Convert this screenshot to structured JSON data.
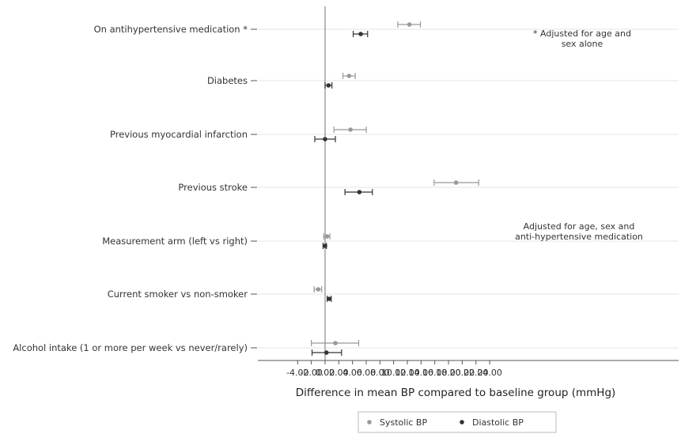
{
  "chart_data": {
    "type": "scatter",
    "xlabel": "Difference in mean BP compared to baseline group (mmHg)",
    "xlim": [
      -4.8,
      24.5
    ],
    "xticks": [
      "-4.00",
      "-2.00",
      "0.00",
      "2.00",
      "4.00",
      "6.00",
      "8.00",
      "10.00",
      "12.00",
      "14.00",
      "16.00",
      "18.00",
      "20.00",
      "22.00",
      "24.00"
    ],
    "xtick_values": [
      -4,
      -2,
      0,
      2,
      4,
      6,
      8,
      10,
      12,
      14,
      16,
      18,
      20,
      22,
      24
    ],
    "reference_line": 0,
    "grid": "horizontal",
    "categories": [
      "On antihypertensive medication *",
      "Diabetes",
      "Previous myocardial infarction",
      "Previous stroke",
      "Measurement arm (left vs right)",
      "Current smoker vs non-smoker",
      "Alcohol intake (1 or more per week vs never/rarely)"
    ],
    "series": [
      {
        "name": "Systolic BP",
        "color": "#999999",
        "points": [
          {
            "est": 12.3,
            "lo": 10.6,
            "hi": 13.9
          },
          {
            "est": 3.5,
            "lo": 2.6,
            "hi": 4.4
          },
          {
            "est": 3.7,
            "lo": 1.3,
            "hi": 6.0
          },
          {
            "est": 19.1,
            "lo": 15.9,
            "hi": 22.4
          },
          {
            "est": 0.3,
            "lo": -0.2,
            "hi": 0.7
          },
          {
            "est": -1.0,
            "lo": -1.6,
            "hi": -0.5
          },
          {
            "est": 1.5,
            "lo": -2.0,
            "hi": 4.9
          }
        ]
      },
      {
        "name": "Diastolic BP",
        "color": "#333333",
        "points": [
          {
            "est": 5.2,
            "lo": 4.1,
            "hi": 6.2
          },
          {
            "est": 0.5,
            "lo": 0.0,
            "hi": 1.0
          },
          {
            "est": 0.0,
            "lo": -1.5,
            "hi": 1.5
          },
          {
            "est": 5.0,
            "lo": 2.9,
            "hi": 6.9
          },
          {
            "est": 0.0,
            "lo": -0.3,
            "hi": 0.2
          },
          {
            "est": 0.6,
            "lo": 0.3,
            "hi": 0.9
          },
          {
            "est": 0.2,
            "lo": -1.9,
            "hi": 2.4
          }
        ]
      }
    ],
    "annotations": [
      {
        "lines": [
          "* Adjusted for age and",
          "sex alone"
        ]
      },
      {
        "lines": [
          "Adjusted for age, sex and",
          "anti-hypertensive medication"
        ]
      }
    ],
    "legend": {
      "position": "bottom",
      "entries": [
        "Systolic BP",
        "Diastolic BP"
      ]
    }
  }
}
